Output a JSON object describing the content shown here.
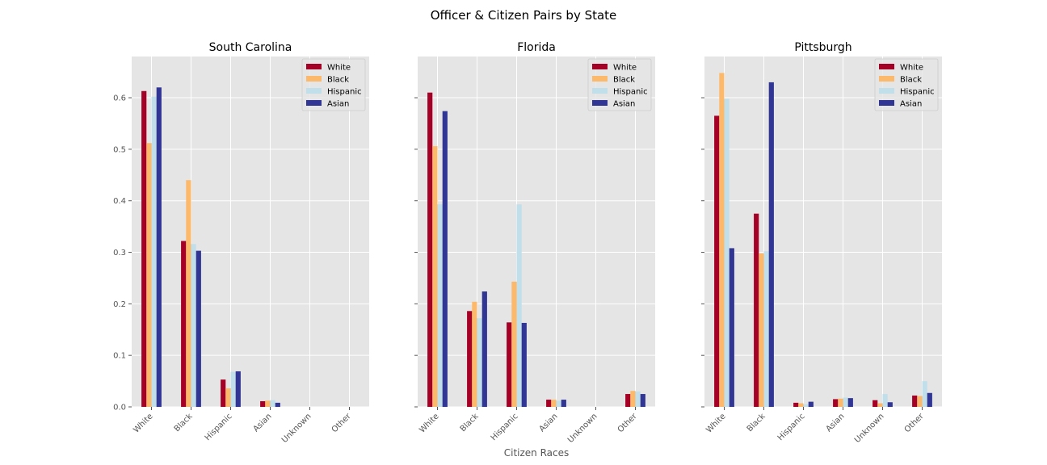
{
  "figure": {
    "suptitle": "Officer & Citizen Pairs by State",
    "xlabel": "Citizen Races"
  },
  "chart_data": [
    {
      "type": "bar",
      "title": "South Carolina",
      "categories": [
        "White",
        "Black",
        "Hispanic",
        "Asian",
        "Unknown",
        "Other"
      ],
      "ylim": [
        0,
        0.68
      ],
      "yticks": [
        0.0,
        0.1,
        0.2,
        0.3,
        0.4,
        0.5,
        0.6
      ],
      "ytick_labels": [
        "0.0",
        "0.1",
        "0.2",
        "0.3",
        "0.4",
        "0.5",
        "0.6"
      ],
      "legend": "top-right",
      "grid": true,
      "series": [
        {
          "name": "White",
          "color": "#a50026",
          "values": [
            0.613,
            0.322,
            0.053,
            0.011,
            0.0,
            0.0
          ]
        },
        {
          "name": "Black",
          "color": "#fdb96b",
          "values": [
            0.512,
            0.44,
            0.036,
            0.012,
            0.0,
            0.0
          ]
        },
        {
          "name": "Hispanic",
          "color": "#c0dfea",
          "values": [
            0.602,
            0.316,
            0.068,
            0.013,
            0.0,
            0.0
          ]
        },
        {
          "name": "Asian",
          "color": "#313695",
          "values": [
            0.62,
            0.303,
            0.069,
            0.008,
            0.0,
            0.0
          ]
        }
      ]
    },
    {
      "type": "bar",
      "title": "Florida",
      "categories": [
        "White",
        "Black",
        "Hispanic",
        "Asian",
        "Unknown",
        "Other"
      ],
      "ylim": [
        0,
        0.68
      ],
      "yticks": [
        0.0,
        0.1,
        0.2,
        0.3,
        0.4,
        0.5,
        0.6
      ],
      "ytick_labels": [],
      "legend": "top-right",
      "grid": true,
      "series": [
        {
          "name": "White",
          "color": "#a50026",
          "values": [
            0.61,
            0.186,
            0.164,
            0.014,
            0.0,
            0.025
          ]
        },
        {
          "name": "Black",
          "color": "#fdb96b",
          "values": [
            0.506,
            0.204,
            0.243,
            0.014,
            0.0,
            0.031
          ]
        },
        {
          "name": "Hispanic",
          "color": "#c0dfea",
          "values": [
            0.393,
            0.172,
            0.393,
            0.012,
            0.0,
            0.03
          ]
        },
        {
          "name": "Asian",
          "color": "#313695",
          "values": [
            0.574,
            0.224,
            0.163,
            0.014,
            0.0,
            0.025
          ]
        }
      ]
    },
    {
      "type": "bar",
      "title": "Pittsburgh",
      "categories": [
        "White",
        "Black",
        "Hispanic",
        "Asian",
        "Unknown",
        "Other"
      ],
      "ylim": [
        0,
        0.68
      ],
      "yticks": [
        0.0,
        0.1,
        0.2,
        0.3,
        0.4,
        0.5,
        0.6
      ],
      "ytick_labels": [],
      "legend": "top-right",
      "grid": true,
      "series": [
        {
          "name": "White",
          "color": "#a50026",
          "values": [
            0.565,
            0.375,
            0.008,
            0.015,
            0.013,
            0.022
          ]
        },
        {
          "name": "Black",
          "color": "#fdb96b",
          "values": [
            0.648,
            0.298,
            0.007,
            0.016,
            0.007,
            0.021
          ]
        },
        {
          "name": "Hispanic",
          "color": "#c0dfea",
          "values": [
            0.598,
            0.302,
            0.005,
            0.018,
            0.025,
            0.05
          ]
        },
        {
          "name": "Asian",
          "color": "#313695",
          "values": [
            0.308,
            0.63,
            0.01,
            0.017,
            0.009,
            0.027
          ]
        }
      ]
    }
  ]
}
